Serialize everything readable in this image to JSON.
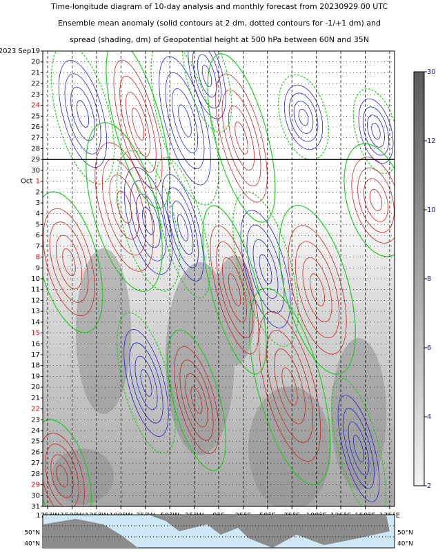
{
  "chart_data": {
    "type": "hovmoller",
    "title_lines": [
      "Time-longitude diagram of 10-day analysis and monthly forecast from 20230929 00 UTC",
      "Ensemble mean anomaly (solid contours at 2 dm, dotted contours for -1/+1 dm) and",
      "spread (shading, dm) of Geopotential height at 500 hPa between 60N and 35N"
    ],
    "y_categories": [
      {
        "label": "2023 Sep19"
      },
      {
        "label": "20"
      },
      {
        "label": "21"
      },
      {
        "label": "22"
      },
      {
        "label": "23"
      },
      {
        "label": "24",
        "color": "#d00000"
      },
      {
        "label": "25"
      },
      {
        "label": "26"
      },
      {
        "label": "27"
      },
      {
        "label": "28"
      },
      {
        "label": "29"
      },
      {
        "label": "30"
      },
      {
        "label": "1",
        "prefix": "Oct",
        "color": "#d00000"
      },
      {
        "label": "2"
      },
      {
        "label": "3"
      },
      {
        "label": "4"
      },
      {
        "label": "5"
      },
      {
        "label": "6"
      },
      {
        "label": "7"
      },
      {
        "label": "8",
        "color": "#d00000"
      },
      {
        "label": "9"
      },
      {
        "label": "10"
      },
      {
        "label": "11"
      },
      {
        "label": "12"
      },
      {
        "label": "13"
      },
      {
        "label": "14"
      },
      {
        "label": "15",
        "color": "#d00000"
      },
      {
        "label": "16"
      },
      {
        "label": "17"
      },
      {
        "label": "18"
      },
      {
        "label": "19"
      },
      {
        "label": "20"
      },
      {
        "label": "21"
      },
      {
        "label": "22",
        "color": "#d00000"
      },
      {
        "label": "23"
      },
      {
        "label": "24"
      },
      {
        "label": "25"
      },
      {
        "label": "26"
      },
      {
        "label": "27"
      },
      {
        "label": "28"
      },
      {
        "label": "29",
        "color": "#d00000"
      },
      {
        "label": "30"
      },
      {
        "label": "31"
      }
    ],
    "forecast_start": 10,
    "xlim": [
      -180,
      180
    ],
    "xticks": [
      {
        "value": -175,
        "label": "175°W"
      },
      {
        "value": -150,
        "label": "150°W"
      },
      {
        "value": -125,
        "label": "125°W"
      },
      {
        "value": -100,
        "label": "100°W"
      },
      {
        "value": -75,
        "label": "75°W"
      },
      {
        "value": -50,
        "label": "50°W"
      },
      {
        "value": -25,
        "label": "25°W"
      },
      {
        "value": 0,
        "label": "0°E"
      },
      {
        "value": 25,
        "label": "25°E"
      },
      {
        "value": 50,
        "label": "50°E"
      },
      {
        "value": 75,
        "label": "75°E"
      },
      {
        "value": 100,
        "label": "100°E"
      },
      {
        "value": 125,
        "label": "125°E"
      },
      {
        "value": 150,
        "label": "150°E"
      },
      {
        "value": 175,
        "label": "175°E"
      }
    ],
    "colorbar_ticks": [
      2,
      4,
      6,
      8,
      10,
      12,
      30
    ],
    "colorbar_colors": [
      "#f2f2f2",
      "#5a5a5a"
    ],
    "map_labels": [
      "50°N",
      "40°N"
    ]
  }
}
